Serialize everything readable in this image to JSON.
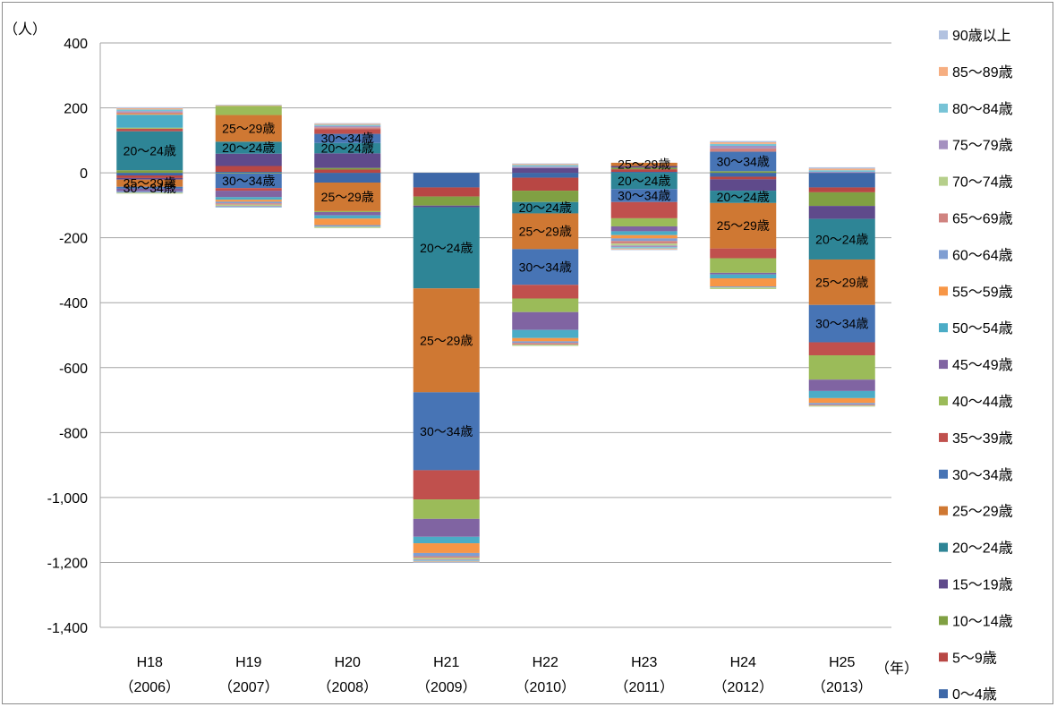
{
  "chart_data": {
    "type": "bar",
    "stacked": true,
    "title": "",
    "ylabel": "（人）",
    "xlabel": "（年）",
    "ylim": [
      -1400,
      400
    ],
    "yticks": [
      400,
      200,
      0,
      -200,
      -400,
      -600,
      -800,
      -1000,
      -1200,
      -1400
    ],
    "ytick_labels": [
      "400",
      "200",
      "0",
      "-200",
      "-400",
      "-600",
      "-800",
      "-1,000",
      "-1,200",
      "-1,400"
    ],
    "grid": true,
    "legend_position": "right",
    "categories": [
      [
        "H18",
        "（2006）"
      ],
      [
        "H19",
        "（2007）"
      ],
      [
        "H20",
        "（2008）"
      ],
      [
        "H21",
        "（2009）"
      ],
      [
        "H22",
        "（2010）"
      ],
      [
        "H23",
        "（2011）"
      ],
      [
        "H24",
        "（2012）"
      ],
      [
        "H25",
        "（2013）"
      ]
    ],
    "series": [
      {
        "name": "0〜4歳",
        "color": "#3e68a8",
        "values": [
          -8,
          3,
          -30,
          -45,
          -15,
          3,
          -12,
          -45
        ]
      },
      {
        "name": "5〜9歳",
        "color": "#b84744",
        "values": [
          -8,
          18,
          10,
          -28,
          -40,
          8,
          -8,
          -15
        ]
      },
      {
        "name": "10〜14歳",
        "color": "#80a043",
        "values": [
          8,
          -2,
          5,
          -28,
          -35,
          5,
          5,
          -42
        ]
      },
      {
        "name": "15〜19歳",
        "color": "#5f4a8b",
        "values": [
          -5,
          38,
          45,
          -5,
          15,
          5,
          -35,
          -40
        ]
      },
      {
        "name": "20〜24歳",
        "color": "#2e8596",
        "values": [
          120,
          37,
          32,
          -250,
          -35,
          -50,
          -38,
          -125
        ]
      },
      {
        "name": "25〜29歳",
        "color": "#cf7833",
        "values": [
          -22,
          82,
          -88,
          -320,
          -110,
          10,
          -140,
          -140
        ]
      },
      {
        "name": "30〜34歳",
        "color": "#4774b5",
        "values": [
          -6,
          -45,
          28,
          -240,
          -110,
          -40,
          60,
          -115
        ]
      },
      {
        "name": "35〜39歳",
        "color": "#c0504d",
        "values": [
          8,
          -8,
          15,
          -90,
          -42,
          -50,
          -30,
          -40
        ]
      },
      {
        "name": "40〜44歳",
        "color": "#9bbb59",
        "values": [
          3,
          28,
          -3,
          -60,
          -42,
          -25,
          -45,
          -75
        ]
      },
      {
        "name": "45〜49歳",
        "color": "#8064a2",
        "values": [
          -8,
          -20,
          -10,
          -55,
          -55,
          -15,
          -5,
          -35
        ]
      },
      {
        "name": "50〜54歳",
        "color": "#4bacc6",
        "values": [
          40,
          -8,
          -10,
          -20,
          -25,
          -12,
          -12,
          -22
        ]
      },
      {
        "name": "55〜59歳",
        "color": "#f79646",
        "values": [
          3,
          -6,
          -20,
          -30,
          -10,
          -10,
          -25,
          -15
        ]
      },
      {
        "name": "60〜64歳",
        "color": "#7f9ed2",
        "values": [
          -4,
          -5,
          -5,
          -10,
          -5,
          -8,
          -3,
          -5
        ]
      },
      {
        "name": "65〜69歳",
        "color": "#d08380",
        "values": [
          4,
          -4,
          5,
          -5,
          -5,
          -8,
          10,
          -3
        ]
      },
      {
        "name": "70〜74歳",
        "color": "#b6cf8b",
        "values": [
          -3,
          -4,
          -4,
          -5,
          -4,
          -6,
          -5,
          -3
        ]
      },
      {
        "name": "75〜79歳",
        "color": "#a591c0",
        "values": [
          4,
          -3,
          4,
          -3,
          4,
          -5,
          8,
          3
        ]
      },
      {
        "name": "80〜84歳",
        "color": "#77c3d6",
        "values": [
          5,
          -2,
          4,
          -3,
          5,
          -4,
          6,
          5
        ]
      },
      {
        "name": "85〜89歳",
        "color": "#f6ae81",
        "values": [
          4,
          2,
          3,
          -2,
          3,
          -3,
          5,
          5
        ]
      },
      {
        "name": "90歳以上",
        "color": "#b2c2e0",
        "values": [
          3,
          2,
          2,
          -2,
          2,
          -2,
          4,
          4
        ]
      }
    ],
    "segment_labels": [
      {
        "category": 0,
        "series": 4,
        "text": "20〜24歳"
      },
      {
        "category": 0,
        "series": 5,
        "text": "25〜29歳"
      },
      {
        "category": 0,
        "series": 6,
        "text": "30〜34歳"
      },
      {
        "category": 1,
        "series": 4,
        "text": "20〜24歳"
      },
      {
        "category": 1,
        "series": 5,
        "text": "25〜29歳"
      },
      {
        "category": 1,
        "series": 6,
        "text": "30〜34歳"
      },
      {
        "category": 2,
        "series": 4,
        "text": "20〜24歳"
      },
      {
        "category": 2,
        "series": 5,
        "text": "25〜29歳"
      },
      {
        "category": 2,
        "series": 6,
        "text": "30〜34歳"
      },
      {
        "category": 3,
        "series": 4,
        "text": "20〜24歳"
      },
      {
        "category": 3,
        "series": 5,
        "text": "25〜29歳"
      },
      {
        "category": 3,
        "series": 6,
        "text": "30〜34歳"
      },
      {
        "category": 4,
        "series": 4,
        "text": "20〜24歳"
      },
      {
        "category": 4,
        "series": 5,
        "text": "25〜29歳"
      },
      {
        "category": 4,
        "series": 6,
        "text": "30〜34歳"
      },
      {
        "category": 5,
        "series": 4,
        "text": "20〜24歳"
      },
      {
        "category": 5,
        "series": 5,
        "text": "25〜29歳"
      },
      {
        "category": 5,
        "series": 6,
        "text": "30〜34歳"
      },
      {
        "category": 6,
        "series": 4,
        "text": "20〜24歳"
      },
      {
        "category": 6,
        "series": 5,
        "text": "25〜29歳"
      },
      {
        "category": 6,
        "series": 6,
        "text": "30〜34歳"
      },
      {
        "category": 7,
        "series": 4,
        "text": "20〜24歳"
      },
      {
        "category": 7,
        "series": 5,
        "text": "25〜29歳"
      },
      {
        "category": 7,
        "series": 6,
        "text": "30〜34歳"
      }
    ]
  }
}
